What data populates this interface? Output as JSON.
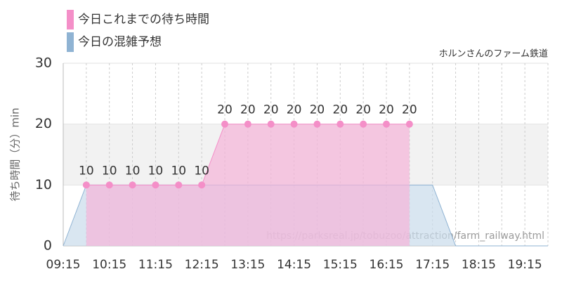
{
  "chart_data": {
    "type": "area",
    "attribution": "ホルンさんのファーム鉄道",
    "watermark": "https://parksreal.jp/tobuzoo/attraction/farm_railway.html",
    "y_label": "待ち時間（分）min",
    "categories": [
      "09:15",
      null,
      "10:15",
      null,
      "11:15",
      null,
      "12:15",
      null,
      "13:15",
      null,
      "14:15",
      null,
      "15:15",
      null,
      "16:15",
      null,
      "17:15",
      null,
      "18:15",
      null,
      "19:15",
      null
    ],
    "series": [
      {
        "name": "今日の混雑予想",
        "color": "#8fb3d3",
        "fill": "#c9dceb",
        "values": [
          0,
          10,
          10,
          10,
          10,
          10,
          10,
          10,
          10,
          10,
          10,
          10,
          10,
          10,
          10,
          10,
          10,
          0,
          0,
          0,
          0,
          0
        ]
      },
      {
        "name": "今日これまでの待ち時間",
        "color": "#f48fc8",
        "fill": "#f5b3d8",
        "values": [
          null,
          10,
          10,
          10,
          10,
          10,
          10,
          20,
          20,
          20,
          20,
          20,
          20,
          20,
          20,
          20,
          null,
          null,
          null,
          null,
          null,
          null
        ],
        "show_value_labels": true
      }
    ],
    "ylim": [
      0,
      30
    ],
    "yticks": [
      0,
      10,
      20,
      30
    ],
    "shaded_band": [
      10,
      20
    ],
    "grid": true
  }
}
